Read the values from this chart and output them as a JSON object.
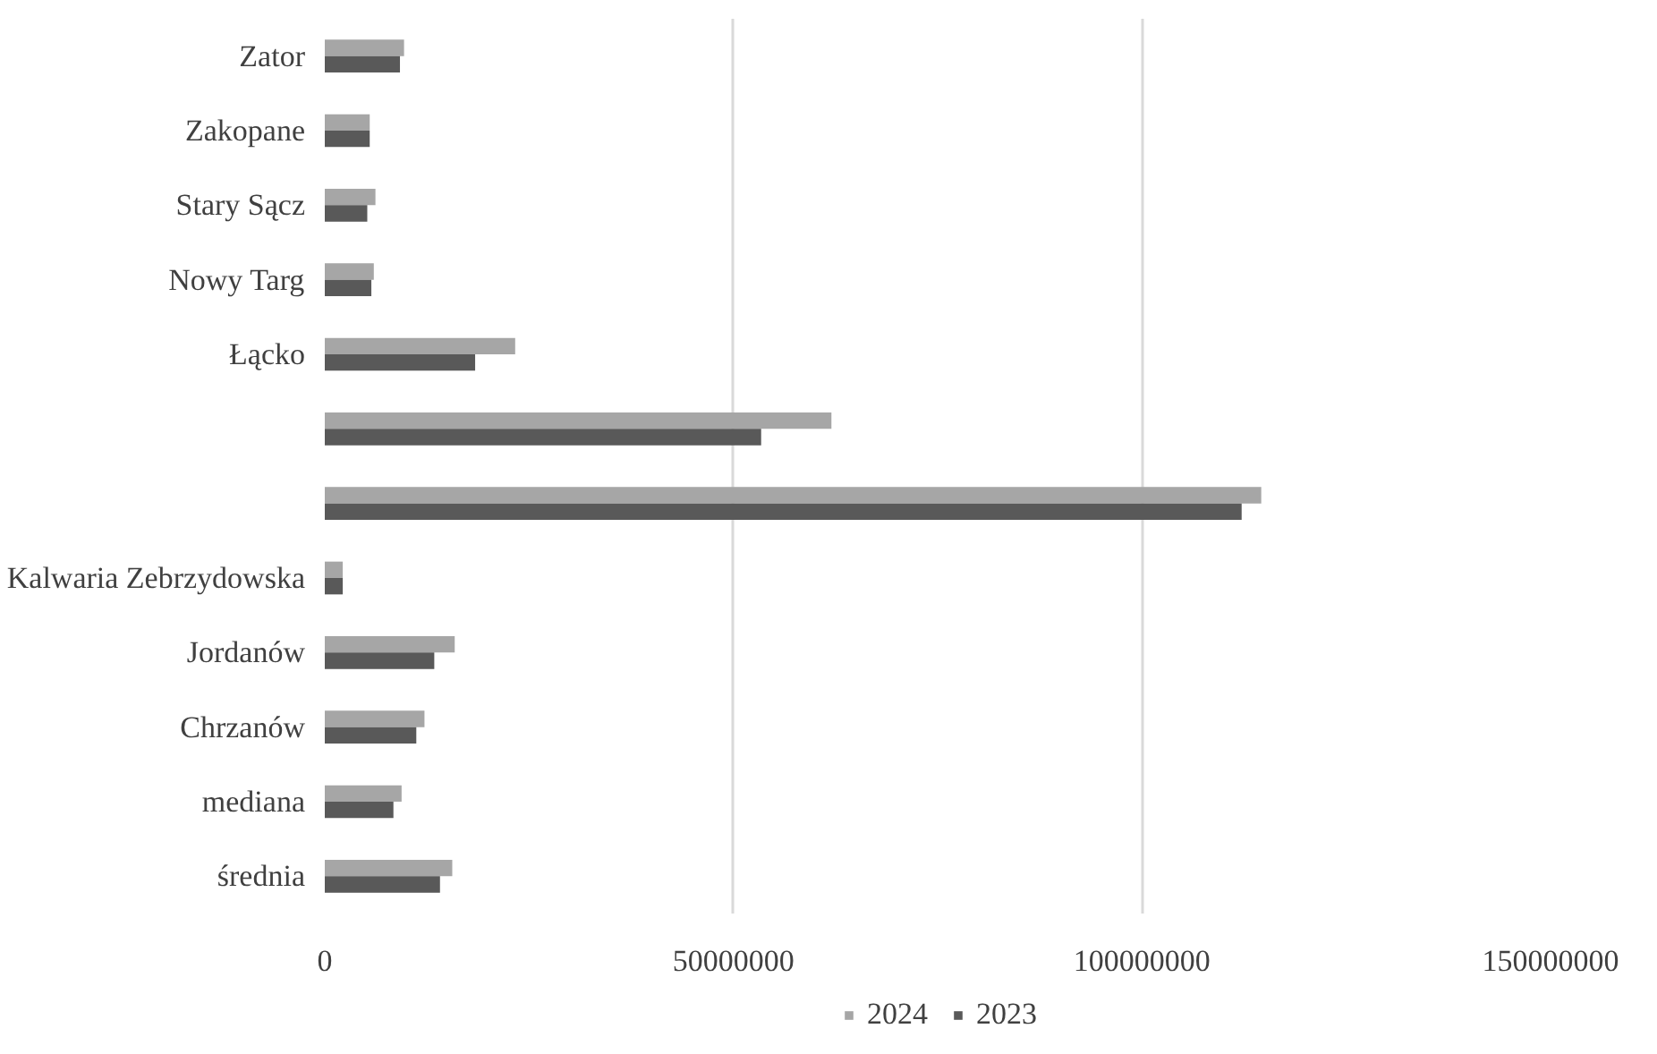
{
  "chart_data": {
    "type": "bar",
    "orientation": "horizontal",
    "categories": [
      "Zator",
      "Zakopane",
      "Stary Sącz",
      "Nowy Targ",
      "Łącko",
      null,
      null,
      "Kalwaria Zebrzydowska",
      "Jordanów",
      "Chrzanów",
      "mediana",
      "średnia"
    ],
    "series": [
      {
        "name": "2024",
        "color": "#a6a6a6",
        "values": [
          9700000,
          5500000,
          6200000,
          6000000,
          23300000,
          62000000,
          114600000,
          2200000,
          15900000,
          12200000,
          9400000,
          15600000
        ]
      },
      {
        "name": "2023",
        "color": "#595959",
        "values": [
          9200000,
          5500000,
          5200000,
          5700000,
          18400000,
          53400000,
          112200000,
          2200000,
          13400000,
          11200000,
          8400000,
          14100000
        ]
      }
    ],
    "xlim": [
      0,
      150000000
    ],
    "xticks": [
      0,
      50000000,
      100000000,
      150000000
    ],
    "grid": "x",
    "legend": "bottom"
  }
}
